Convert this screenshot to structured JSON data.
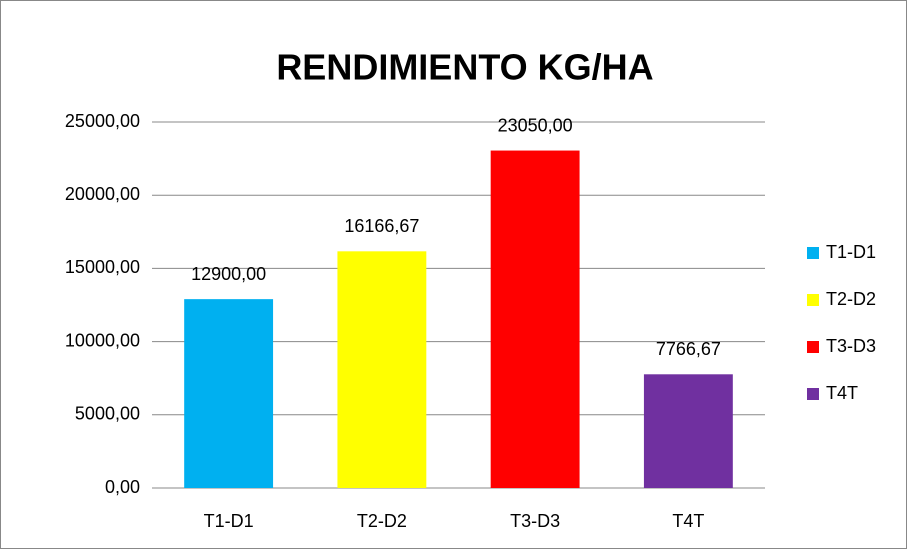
{
  "chart_data": {
    "type": "bar",
    "title": "RENDIMIENTO KG/HA",
    "categories": [
      "T1-D1",
      "T2-D2",
      "T3-D3",
      "T4T"
    ],
    "values": [
      12900,
      16166.67,
      23050,
      7766.67
    ],
    "value_labels": [
      "12900,00",
      "16166,67",
      "23050,00",
      "7766,67"
    ],
    "colors": [
      "#00b0f0",
      "#ffff00",
      "#ff0000",
      "#7030a0"
    ],
    "ylim": [
      0,
      25000
    ],
    "yticks": [
      {
        "value": 0,
        "label": "0,00"
      },
      {
        "value": 5000,
        "label": "5000,00"
      },
      {
        "value": 10000,
        "label": "10000,00"
      },
      {
        "value": 15000,
        "label": "15000,00"
      },
      {
        "value": 20000,
        "label": "20000,00"
      },
      {
        "value": 25000,
        "label": "25000,00"
      }
    ],
    "grid": true,
    "legend": "right"
  }
}
